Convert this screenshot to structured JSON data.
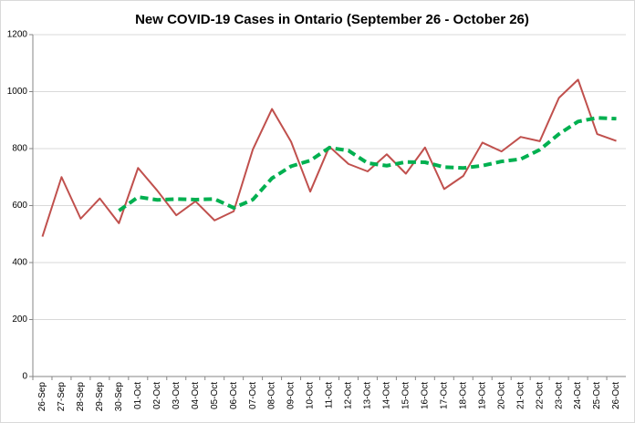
{
  "chart_data": {
    "type": "line",
    "title": "New COVID-19 Cases in Ontario (September 26 - October 26)",
    "categories": [
      "26-Sep",
      "27-Sep",
      "28-Sep",
      "29-Sep",
      "30-Sep",
      "01-Oct",
      "02-Oct",
      "03-Oct",
      "04-Oct",
      "05-Oct",
      "06-Oct",
      "07-Oct",
      "08-Oct",
      "09-Oct",
      "10-Oct",
      "11-Oct",
      "12-Oct",
      "13-Oct",
      "14-Oct",
      "15-Oct",
      "16-Oct",
      "17-Oct",
      "18-Oct",
      "19-Oct",
      "20-Oct",
      "21-Oct",
      "22-Oct",
      "23-Oct",
      "24-Oct",
      "25-Oct",
      "26-Oct"
    ],
    "series": [
      {
        "color": "#c0504d",
        "dashed": false,
        "values": [
          491,
          700,
          554,
          625,
          538,
          732,
          653,
          566,
          615,
          548,
          580,
          797,
          939,
          824,
          649,
          807,
          746,
          720,
          780,
          712,
          804,
          658,
          704,
          821,
          790,
          841,
          826,
          978,
          1042,
          851,
          827
        ]
      },
      {
        "color": "#00b050",
        "dashed": true,
        "values": [
          null,
          null,
          null,
          null,
          582,
          630,
          620,
          623,
          621,
          623,
          592,
          621,
          696,
          738,
          758,
          803,
          793,
          749,
          740,
          753,
          752,
          735,
          732,
          740,
          755,
          763,
          796,
          851,
          895,
          908,
          905
        ]
      }
    ],
    "ylim": [
      0,
      1200
    ],
    "yticks": [
      0,
      200,
      400,
      600,
      800,
      1000,
      1200
    ],
    "grid": true
  }
}
